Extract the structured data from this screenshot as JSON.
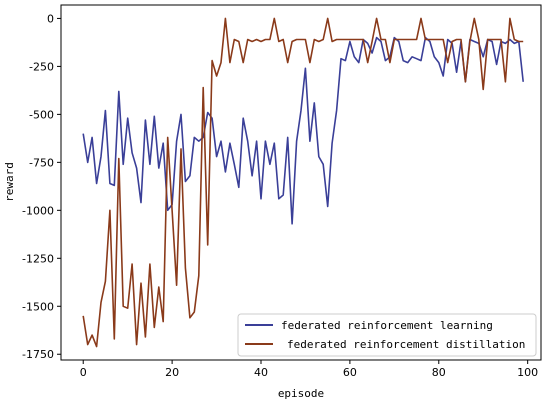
{
  "chart_data": {
    "type": "line",
    "title": "",
    "xlabel": "episode",
    "ylabel": "reward",
    "xlim": [
      -5,
      103
    ],
    "ylim": [
      -1780,
      70
    ],
    "xticks": [
      0,
      20,
      40,
      60,
      80,
      100
    ],
    "yticks": [
      0,
      -250,
      -500,
      -750,
      -1000,
      -1250,
      -1500,
      -1750
    ],
    "xtick_labels": [
      "0",
      "20",
      "40",
      "60",
      "80",
      "100"
    ],
    "ytick_labels": [
      "0",
      "-250",
      "-500",
      "-750",
      "-1000",
      "-1250",
      "-1500",
      "-1750"
    ],
    "grid": false,
    "legend_position": "lower-right",
    "series": [
      {
        "name": "federated reinforcement learning",
        "color": "#3a3f98",
        "x": [
          0,
          1,
          2,
          3,
          4,
          5,
          6,
          7,
          8,
          9,
          10,
          11,
          12,
          13,
          14,
          15,
          16,
          17,
          18,
          19,
          20,
          21,
          22,
          23,
          24,
          25,
          26,
          27,
          28,
          29,
          30,
          31,
          32,
          33,
          34,
          35,
          36,
          37,
          38,
          39,
          40,
          41,
          42,
          43,
          44,
          45,
          46,
          47,
          48,
          49,
          50,
          51,
          52,
          53,
          54,
          55,
          56,
          57,
          58,
          59,
          60,
          61,
          62,
          63,
          64,
          65,
          66,
          67,
          68,
          69,
          70,
          71,
          72,
          73,
          74,
          75,
          76,
          77,
          78,
          79,
          80,
          81,
          82,
          83,
          84,
          85,
          86,
          87,
          88,
          89,
          90,
          91,
          92,
          93,
          94,
          95,
          96,
          97,
          98,
          99
        ],
        "y": [
          -600,
          -750,
          -620,
          -860,
          -720,
          -480,
          -860,
          -870,
          -380,
          -760,
          -520,
          -700,
          -780,
          -960,
          -530,
          -760,
          -510,
          -780,
          -650,
          -1000,
          -970,
          -640,
          -500,
          -850,
          -820,
          -620,
          -640,
          -620,
          -490,
          -520,
          -720,
          -640,
          -800,
          -650,
          -760,
          -880,
          -520,
          -640,
          -820,
          -640,
          -940,
          -640,
          -760,
          -650,
          -940,
          -920,
          -620,
          -1070,
          -640,
          -480,
          -260,
          -640,
          -440,
          -720,
          -760,
          -980,
          -650,
          -480,
          -210,
          -220,
          -120,
          -200,
          -230,
          -110,
          -130,
          -180,
          -100,
          -120,
          -220,
          -200,
          -100,
          -120,
          -220,
          -230,
          -200,
          -210,
          -220,
          -100,
          -120,
          -200,
          -230,
          -300,
          -110,
          -130,
          -280,
          -120,
          -330,
          -110,
          -120,
          -130,
          -200,
          -110,
          -120,
          -240,
          -120,
          -130,
          -110,
          -130,
          -120,
          -330
        ]
      },
      {
        "name": "federated reinforcement distillation",
        "color": "#8a3a1a",
        "x": [
          0,
          1,
          2,
          3,
          4,
          5,
          6,
          7,
          8,
          9,
          10,
          11,
          12,
          13,
          14,
          15,
          16,
          17,
          18,
          19,
          20,
          21,
          22,
          23,
          24,
          25,
          26,
          27,
          28,
          29,
          30,
          31,
          32,
          33,
          34,
          35,
          36,
          37,
          38,
          39,
          40,
          41,
          42,
          43,
          44,
          45,
          46,
          47,
          48,
          49,
          50,
          51,
          52,
          53,
          54,
          55,
          56,
          57,
          58,
          59,
          60,
          61,
          62,
          63,
          64,
          65,
          66,
          67,
          68,
          69,
          70,
          71,
          72,
          73,
          74,
          75,
          76,
          77,
          78,
          79,
          80,
          81,
          82,
          83,
          84,
          85,
          86,
          87,
          88,
          89,
          90,
          91,
          92,
          93,
          94,
          95,
          96,
          97,
          98,
          99
        ],
        "y": [
          -1550,
          -1700,
          -1650,
          -1710,
          -1480,
          -1370,
          -1000,
          -1670,
          -730,
          -1500,
          -1510,
          -1280,
          -1700,
          -1380,
          -1660,
          -1280,
          -1610,
          -1400,
          -1580,
          -620,
          -1000,
          -1390,
          -680,
          -1300,
          -1560,
          -1530,
          -1340,
          -360,
          -1180,
          -220,
          -300,
          -230,
          0,
          -230,
          -110,
          -120,
          -230,
          -110,
          -120,
          -110,
          -120,
          -110,
          -110,
          0,
          -120,
          -110,
          -230,
          -120,
          -110,
          -110,
          -110,
          -230,
          -110,
          -120,
          -110,
          0,
          -120,
          -110,
          -110,
          -110,
          -110,
          -110,
          -110,
          -110,
          -230,
          -120,
          0,
          -110,
          -110,
          -230,
          -110,
          -110,
          -110,
          -110,
          -110,
          -110,
          0,
          -110,
          -110,
          -110,
          -110,
          -110,
          -230,
          -120,
          -110,
          -110,
          -330,
          -120,
          0,
          -110,
          -370,
          -110,
          -110,
          -110,
          -110,
          -330,
          0,
          -110,
          -120,
          -120
        ]
      }
    ]
  }
}
